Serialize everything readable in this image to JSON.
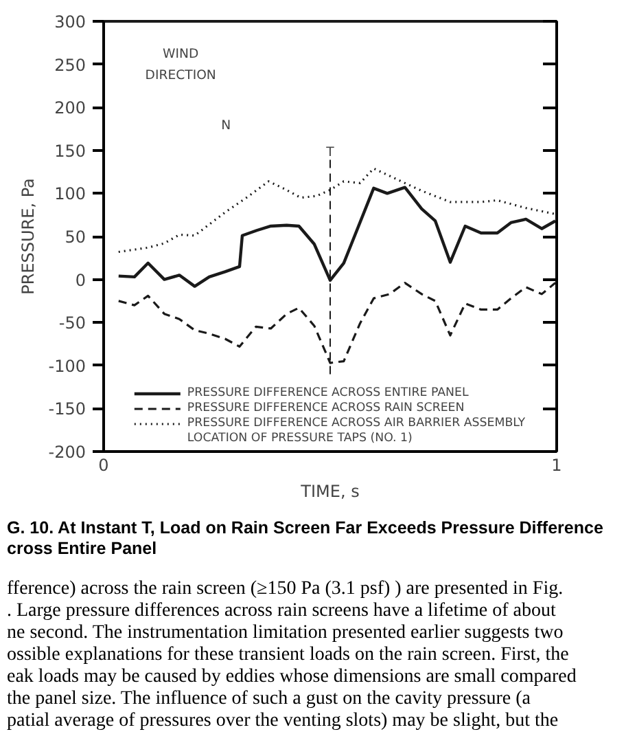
{
  "chart_data": {
    "type": "line",
    "xlabel": "TIME, s",
    "ylabel": "PRESSURE, Pa",
    "xlim": [
      0,
      1
    ],
    "xticks": [
      0,
      1
    ],
    "ylim": [
      -200,
      300
    ],
    "yticks": [
      -200,
      -150,
      -100,
      -50,
      0,
      50,
      100,
      150,
      200,
      250,
      300
    ],
    "grid": false,
    "legend": "bottom",
    "marker": "none",
    "series": [
      {
        "name": "PRESSURE DIFFERENCE ACROSS ENTIRE PANEL",
        "color": "#1a1a1a",
        "line_style": "solid",
        "x": [
          0.033,
          0.068,
          0.098,
          0.134,
          0.167,
          0.201,
          0.233,
          0.268,
          0.3,
          0.306,
          0.338,
          0.369,
          0.404,
          0.431,
          0.465,
          0.5,
          0.53,
          0.596,
          0.626,
          0.665,
          0.702,
          0.732,
          0.765,
          0.798,
          0.833,
          0.869,
          0.899,
          0.932,
          0.967,
          0.997
        ],
        "values": [
          4,
          3,
          19,
          0,
          5,
          -8,
          3,
          9,
          15,
          51,
          57,
          62,
          63,
          62,
          41,
          -1,
          19,
          106,
          100,
          107,
          82,
          68,
          20,
          62,
          54,
          54,
          66,
          70,
          59,
          68
        ]
      },
      {
        "name": "PRESSURE DIFFERENCE ACROSS RAIN SCREEN",
        "color": "#1a1a1a",
        "line_style": "dashed",
        "x": [
          0.033,
          0.068,
          0.098,
          0.134,
          0.167,
          0.201,
          0.233,
          0.268,
          0.3,
          0.336,
          0.369,
          0.404,
          0.431,
          0.465,
          0.5,
          0.53,
          0.566,
          0.596,
          0.631,
          0.665,
          0.702,
          0.732,
          0.765,
          0.798,
          0.833,
          0.869,
          0.899,
          0.932,
          0.967,
          0.997
        ],
        "values": [
          -25,
          -30,
          -19,
          -40,
          -46,
          -59,
          -63,
          -69,
          -78,
          -55,
          -57,
          -40,
          -33,
          -54,
          -97,
          -95,
          -51,
          -22,
          -17,
          -4,
          -17,
          -25,
          -65,
          -28,
          -35,
          -35,
          -22,
          -9,
          -17,
          -4
        ]
      },
      {
        "name": "PRESSURE DIFFERENCE ACROSS AIR BARRIER ASSEMBLY",
        "color": "#1a1a1a",
        "line_style": "dotted",
        "x": [
          0.033,
          0.098,
          0.134,
          0.167,
          0.201,
          0.268,
          0.318,
          0.364,
          0.4,
          0.435,
          0.47,
          0.5,
          0.53,
          0.566,
          0.596,
          0.665,
          0.702,
          0.765,
          0.833,
          0.869,
          0.932,
          0.997
        ],
        "values": [
          32,
          37,
          42,
          52,
          51,
          78,
          96,
          114,
          105,
          95,
          97,
          104,
          114,
          112,
          129,
          112,
          103,
          90,
          90,
          92,
          83,
          76
        ]
      }
    ],
    "ref_lines": [
      {
        "axis": "x",
        "value": 0.5,
        "label": "T",
        "line_style": "dashed"
      }
    ],
    "annotations": [
      "WIND DIRECTION",
      "N",
      "LOCATION OF PRESSURE TAPS (NO. 1)",
      "G. 10. At Instant T, Load on Rain Screen Far Exceeds Pressure Difference",
      "cross Entire Panel",
      "fference) across the rain screen (≥150 Pa (3.1 psf) ) are presented in Fig.",
      ". Large pressure differences across rain screens have a lifetime of about",
      "ne second. The instrumentation limitation presented earlier suggests two",
      "ossible explanations for these transient loads on the rain screen. First, the",
      "eak loads may be caused by eddies whose dimensions are small compared",
      "the panel size. The influence of such a gust on the cavity pressure (a",
      "patial average of pressures over the venting slots) may be slight, but the"
    ]
  }
}
